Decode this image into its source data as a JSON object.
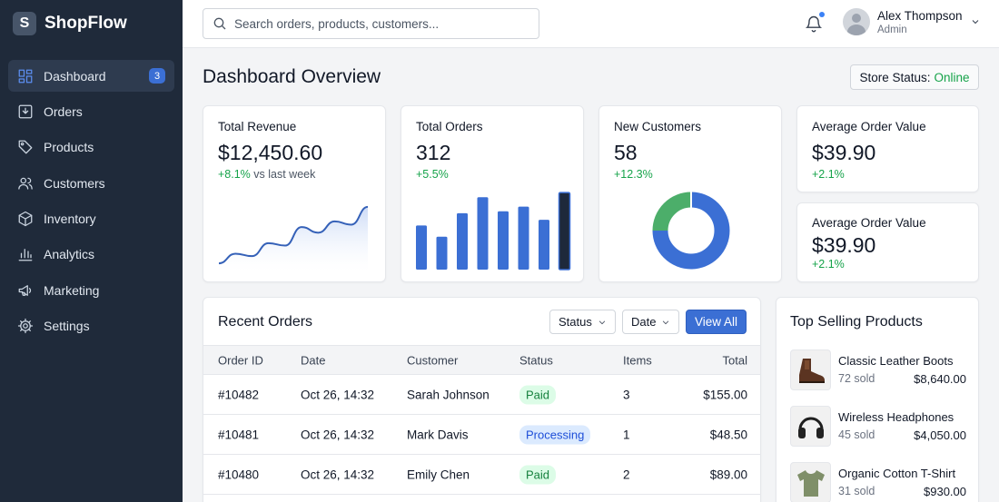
{
  "brand": {
    "logo_letter": "S",
    "name": "ShopFlow"
  },
  "sidebar": {
    "items": [
      {
        "label": "Dashboard",
        "icon": "dashboard-icon",
        "badge": "3",
        "active": true
      },
      {
        "label": "Orders",
        "icon": "orders-icon"
      },
      {
        "label": "Products",
        "icon": "tag-icon"
      },
      {
        "label": "Customers",
        "icon": "users-icon"
      },
      {
        "label": "Inventory",
        "icon": "box-icon"
      },
      {
        "label": "Analytics",
        "icon": "bar-chart-icon"
      },
      {
        "label": "Marketing",
        "icon": "megaphone-icon"
      },
      {
        "label": "Settings",
        "icon": "gear-icon"
      }
    ]
  },
  "topbar": {
    "search_placeholder": "Search orders, products, customers...",
    "user": {
      "name": "Alex Thompson",
      "role": "Admin"
    }
  },
  "header": {
    "title": "Dashboard Overview",
    "store_status_label": "Store Status:",
    "store_status_value": "Online"
  },
  "cards": {
    "revenue": {
      "label": "Total Revenue",
      "value": "$12,450.60",
      "change": "+8.1%",
      "change_suffix": " vs last week"
    },
    "orders": {
      "label": "Total Orders",
      "value": "312",
      "change": "+5.5%"
    },
    "customers": {
      "label": "New Customers",
      "value": "58",
      "change": "+12.3%"
    },
    "aov1": {
      "label": "Average Order Value",
      "value": "$39.90",
      "change": "+2.1%"
    },
    "aov2": {
      "label": "Average Order Value",
      "value": "$39.90",
      "change": "+2.1%"
    }
  },
  "chart_data": [
    {
      "type": "line",
      "values": [
        10,
        22,
        19,
        35,
        32,
        55,
        48,
        62,
        58,
        80
      ]
    },
    {
      "type": "bar",
      "values": [
        47,
        35,
        60,
        77,
        62,
        67,
        53,
        82
      ],
      "highlight_last": true
    },
    {
      "type": "pie",
      "values": [
        75,
        25
      ],
      "colors": [
        "#3b6fd4",
        "#4cae6a"
      ]
    }
  ],
  "recent_orders": {
    "title": "Recent Orders",
    "filter_status": "Status",
    "filter_date": "Date",
    "view_all": "View All",
    "columns": {
      "id": "Order ID",
      "date": "Date",
      "customer": "Customer",
      "status": "Status",
      "items": "Items",
      "total": "Total"
    },
    "rows": [
      {
        "id": "#10482",
        "date": "Oct 26, 14:32",
        "customer": "Sarah Johnson",
        "status": "Paid",
        "items": "3",
        "total": "$155.00"
      },
      {
        "id": "#10481",
        "date": "Oct 26, 14:32",
        "customer": "Mark Davis",
        "status": "Processing",
        "items": "1",
        "total": "$48.50"
      },
      {
        "id": "#10480",
        "date": "Oct 26, 14:32",
        "customer": "Emily Chen",
        "status": "Paid",
        "items": "2",
        "total": "$89.00"
      }
    ]
  },
  "top_selling": {
    "title": "Top Selling Products",
    "products": [
      {
        "name": "Classic Leather Boots",
        "sold": "72 sold",
        "revenue": "$8,640.00",
        "icon": "boot-icon"
      },
      {
        "name": "Wireless Headphones",
        "sold": "45 sold",
        "revenue": "$4,050.00",
        "icon": "headphones-icon"
      },
      {
        "name": "Organic Cotton T-Shirt",
        "sold": "31 sold",
        "revenue": "$930.00",
        "icon": "tshirt-icon"
      }
    ]
  }
}
